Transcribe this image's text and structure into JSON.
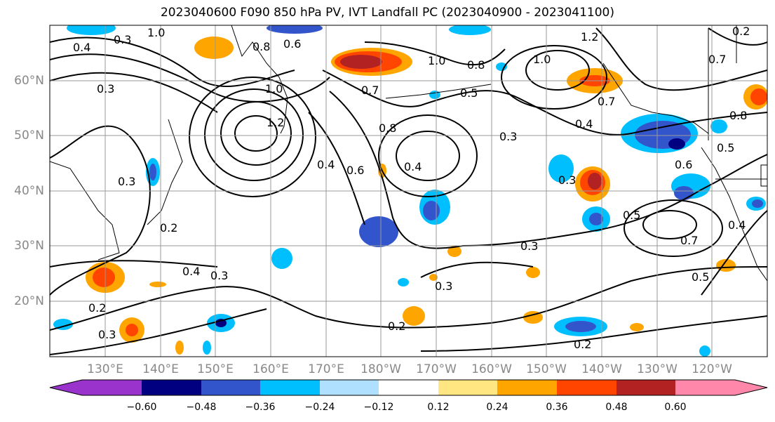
{
  "title": "2023040600 F090 850 hPa PV, IVT Landfall PC (2023040900 - 2023041100)",
  "map": {
    "lat_labels": [
      "60°N",
      "50°N",
      "40°N",
      "30°N",
      "20°N"
    ],
    "lon_labels": [
      "130°E",
      "140°E",
      "150°E",
      "160°E",
      "170°E",
      "180°W",
      "170°W",
      "160°W",
      "150°W",
      "140°W",
      "130°W",
      "120°W"
    ],
    "lat_range": [
      10,
      70
    ],
    "lon_range": [
      "122°E",
      "112°W"
    ],
    "gridlines": true,
    "contour_labels": [
      "0.4",
      "0.3",
      "1.0",
      "0.8",
      "0.6",
      "1.2",
      "1.0",
      "1.0",
      "0.8",
      "0.3",
      "0.7",
      "0.5",
      "1.0",
      "0.7",
      "1.2",
      "0.8",
      "0.3",
      "0.4",
      "0.2",
      "0.4",
      "0.6",
      "0.4",
      "0.3",
      "0.3",
      "0.5",
      "0.6",
      "0.7",
      "0.5",
      "0.2",
      "0.3",
      "0.4",
      "0.3",
      "0.3",
      "0.2",
      "0.2",
      "0.3",
      "0.2",
      "0.7",
      "0.8",
      "0.5",
      "0.4"
    ]
  },
  "colorbar": {
    "ticks": [
      "−0.60",
      "−0.48",
      "−0.36",
      "−0.24",
      "−0.12",
      "0.12",
      "0.24",
      "0.36",
      "0.48",
      "0.60"
    ],
    "colors": [
      "#9933cc",
      "#000080",
      "#3355cc",
      "#00bfff",
      "#b0e0ff",
      "#ffffff",
      "#ffe680",
      "#ffa500",
      "#ff4500",
      "#b22222",
      "#ff88aa"
    ]
  }
}
